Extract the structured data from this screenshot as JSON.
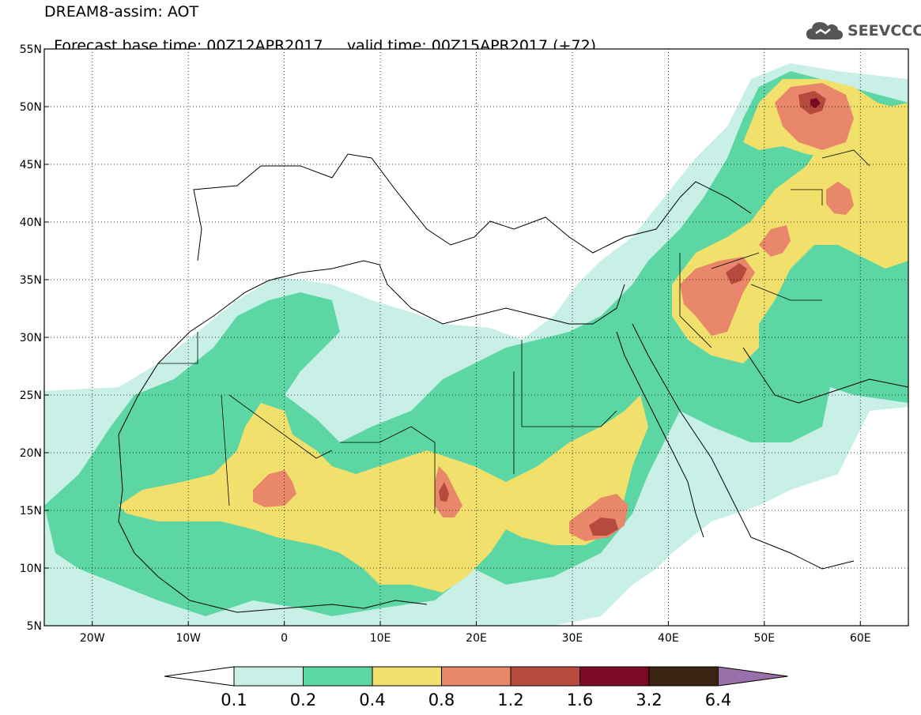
{
  "header": {
    "title": "DREAM8-assim: AOT",
    "forecast_base": "Forecast base time: 00Z12APR2017",
    "valid_time": "valid time: 00Z15APR2017 (+72)"
  },
  "logo": {
    "text": "SEEVCCC",
    "icon": "cloud-icon"
  },
  "map": {
    "projection": "equirectangular",
    "lon_range": [
      -25,
      65
    ],
    "lat_range": [
      5,
      55
    ],
    "lat_ticks": [
      {
        "value": 55,
        "label": "55N"
      },
      {
        "value": 50,
        "label": "50N"
      },
      {
        "value": 45,
        "label": "45N"
      },
      {
        "value": 40,
        "label": "40N"
      },
      {
        "value": 35,
        "label": "35N"
      },
      {
        "value": 30,
        "label": "30N"
      },
      {
        "value": 25,
        "label": "25N"
      },
      {
        "value": 20,
        "label": "20N"
      },
      {
        "value": 15,
        "label": "15N"
      },
      {
        "value": 10,
        "label": "10N"
      },
      {
        "value": 5,
        "label": "5N"
      }
    ],
    "lon_ticks": [
      {
        "value": -20,
        "label": "20W"
      },
      {
        "value": -10,
        "label": "10W"
      },
      {
        "value": 0,
        "label": "0"
      },
      {
        "value": 10,
        "label": "10E"
      },
      {
        "value": 20,
        "label": "20E"
      },
      {
        "value": 30,
        "label": "30E"
      },
      {
        "value": 40,
        "label": "40E"
      },
      {
        "value": 50,
        "label": "50E"
      },
      {
        "value": 60,
        "label": "60E"
      }
    ],
    "gridlines": "dotted",
    "field": "Aerosol optical thickness (dust)",
    "features": [
      {
        "name": "north-african-dust-plume",
        "level": 0.4
      },
      {
        "name": "chad-hotspot",
        "level": 1.6
      },
      {
        "name": "sudan-hotspot",
        "level": 1.6
      },
      {
        "name": "mali-hotspot",
        "level": 1.2
      },
      {
        "name": "kazakhstan-hotspot",
        "level": 3.2
      },
      {
        "name": "iraq-hotspot",
        "level": 1.6
      }
    ]
  },
  "colorbar": {
    "levels": [
      "0.1",
      "0.2",
      "0.4",
      "0.8",
      "1.2",
      "1.6",
      "3.2",
      "6.4"
    ],
    "colors": [
      "#c8f0e6",
      "#5cd6a3",
      "#f2e06c",
      "#e8876a",
      "#b74a3e",
      "#7a0a25",
      "#3b2314",
      "#9a70a8"
    ],
    "under_color": "#ffffff",
    "over_color": "#9a70a8"
  }
}
